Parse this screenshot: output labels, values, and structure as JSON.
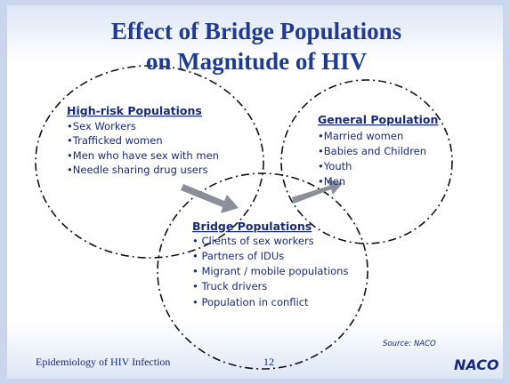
{
  "header": {
    "title_lines": [
      "Effect of Bridge Populations",
      "on Magnitude of HIV"
    ]
  },
  "groups": [
    {
      "heading": "High-risk Populations",
      "items": [
        "•Sex Workers",
        "•Trafficked women",
        "•Men who have sex with men",
        "•Needle sharing drug users"
      ]
    },
    {
      "heading": "General Population",
      "items": [
        "•Married women",
        "•Babies and Children",
        "•Youth",
        "•Men"
      ]
    },
    {
      "heading": "Bridge Populations",
      "items": [
        "• Clients of sex workers",
        "• Partners of IDUs",
        "• Migrant / mobile populations",
        "• Truck drivers",
        "• Population in conflict"
      ]
    }
  ],
  "footer": {
    "left": "Epidemiology of HIV Infection",
    "page": "12",
    "source": "Source: NACO",
    "logo": "NACO"
  }
}
